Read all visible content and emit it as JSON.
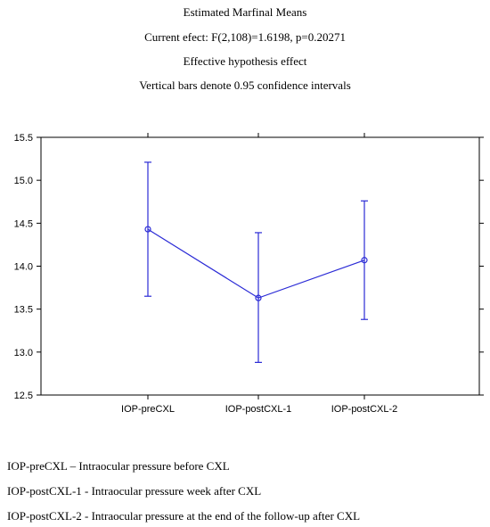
{
  "chart_data": {
    "type": "line",
    "title": "Estimated Marfinal Means",
    "subtitle_lines": [
      "Current efect: F(2,108)=1.6198,  p=0.20271",
      "Effective hypothesis effect",
      "Vertical bars denote 0.95 confidence intervals"
    ],
    "categories": [
      "IOP-preCXL",
      "IOP-postCXL-1",
      "IOP-postCXL-2"
    ],
    "series": [
      {
        "values": [
          14.43,
          13.63,
          14.07
        ],
        "ci_low": [
          13.65,
          12.88,
          13.38
        ],
        "ci_high": [
          15.21,
          14.39,
          14.76
        ],
        "color": "#2b2bd6"
      }
    ],
    "ylim": [
      12.5,
      15.5
    ],
    "yticks": [
      "12.5",
      "13.0",
      "13.5",
      "14.0",
      "14.5",
      "15.0",
      "15.5"
    ],
    "grid": false,
    "xlabel": "",
    "ylabel": ""
  },
  "notes": [
    "IOP-preCXL – Intraocular pressure before CXL",
    "IOP-postCXL-1 - Intraocular pressure week after CXL",
    "IOP-postCXL-2 - Intraocular pressure at the end of the follow-up after CXL"
  ]
}
